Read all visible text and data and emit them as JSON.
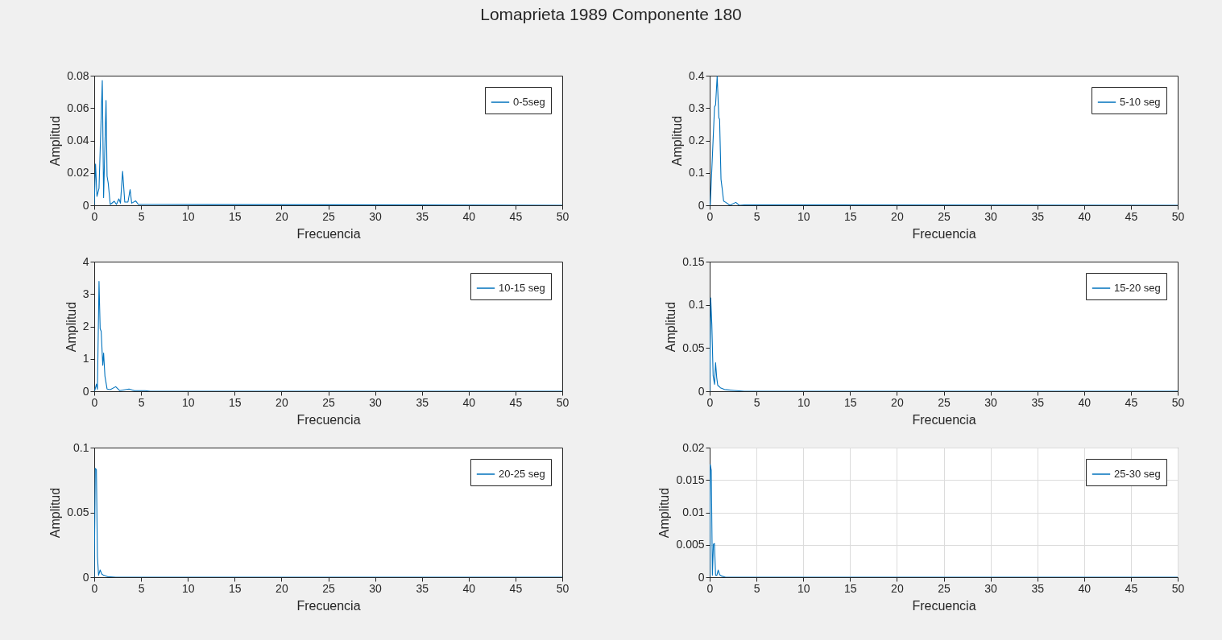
{
  "chart_data": [
    {
      "type": "line",
      "title": "Lomaprieta 1989 Componente 180",
      "xlabel": "Frecuencia",
      "ylabel": "Amplitud",
      "xlim": [
        0,
        50
      ],
      "xticks": [
        0,
        5,
        10,
        15,
        20,
        25,
        30,
        35,
        40,
        45,
        50
      ],
      "ylim": [
        0,
        0.08
      ],
      "yticks": [
        0,
        0.02,
        0.04,
        0.06,
        0.08
      ],
      "legend": "top right",
      "x": [
        0,
        0.14,
        0.29,
        0.51,
        0.86,
        1.0,
        1.26,
        1.37,
        1.49,
        1.71,
        2.14,
        2.37,
        2.63,
        2.8,
        3.03,
        3.26,
        3.6,
        3.83,
        4.0,
        4.43,
        4.71,
        6.14,
        50
      ],
      "series": [
        {
          "name": "0-5seg",
          "color": "#0072bd",
          "values": [
            0.0005,
            0.0255,
            0.0055,
            0.0105,
            0.077,
            0.0047,
            0.0647,
            0.018,
            0.0138,
            0.0005,
            0.0025,
            0.0005,
            0.004,
            0.0013,
            0.021,
            0.002,
            0.002,
            0.0097,
            0.0013,
            0.0027,
            0.0005,
            0.0005,
            0
          ]
        }
      ]
    },
    {
      "type": "line",
      "xlabel": "Frecuencia",
      "ylabel": "Amplitud",
      "xlim": [
        0,
        50
      ],
      "xticks": [
        0,
        5,
        10,
        15,
        20,
        25,
        30,
        35,
        40,
        45,
        50
      ],
      "ylim": [
        0,
        0.4
      ],
      "yticks": [
        0,
        0.1,
        0.2,
        0.3,
        0.4
      ],
      "legend": "top right",
      "x": [
        0.06,
        0.52,
        0.63,
        0.8,
        0.98,
        1.06,
        1.21,
        1.32,
        1.49,
        1.72,
        2.16,
        2.79,
        3.16,
        3.7,
        50
      ],
      "series": [
        {
          "name": "5-10 seg",
          "color": "#0072bd",
          "values": [
            0,
            0.303,
            0.31,
            0.398,
            0.27,
            0.265,
            0.08,
            0.055,
            0.013,
            0.009,
            0,
            0.009,
            0,
            0.001,
            0
          ]
        }
      ]
    },
    {
      "type": "line",
      "xlabel": "Frecuencia",
      "ylabel": "Amplitud",
      "xlim": [
        0,
        50
      ],
      "xticks": [
        0,
        5,
        10,
        15,
        20,
        25,
        30,
        35,
        40,
        45,
        50
      ],
      "ylim": [
        0,
        4
      ],
      "yticks": [
        0,
        1,
        2,
        3,
        4
      ],
      "legend": "top right",
      "x": [
        0.06,
        0.23,
        0.34,
        0.51,
        0.63,
        0.74,
        0.91,
        1.0,
        1.14,
        1.37,
        1.71,
        2.29,
        2.71,
        3.71,
        4.29,
        5.43,
        6.0,
        50
      ],
      "series": [
        {
          "name": "10-15 seg",
          "color": "#0072bd",
          "values": [
            0.02,
            0.22,
            0.06,
            3.39,
            1.93,
            1.85,
            0.8,
            1.18,
            0.47,
            0.07,
            0.05,
            0.14,
            0.02,
            0.07,
            0.02,
            0.02,
            0,
            0
          ]
        }
      ]
    },
    {
      "type": "line",
      "xlabel": "Frecuencia",
      "ylabel": "Amplitud",
      "xlim": [
        0,
        50
      ],
      "xticks": [
        0,
        5,
        10,
        15,
        20,
        25,
        30,
        35,
        40,
        45,
        50
      ],
      "ylim": [
        0,
        0.15
      ],
      "yticks": [
        0,
        0.05,
        0.1,
        0.15
      ],
      "legend": "top right",
      "x": [
        0,
        0.11,
        0.23,
        0.37,
        0.52,
        0.63,
        0.75,
        0.86,
        1.15,
        1.58,
        2.6,
        3.7,
        50
      ],
      "series": [
        {
          "name": "15-20 seg",
          "color": "#0072bd",
          "values": [
            0,
            0.108,
            0.077,
            0.018,
            0.008,
            0.033,
            0.016,
            0.007,
            0.004,
            0.002,
            0.001,
            0,
            0
          ]
        }
      ]
    },
    {
      "type": "line",
      "xlabel": "Frecuencia",
      "ylabel": "Amplitud",
      "xlim": [
        0,
        50
      ],
      "xticks": [
        0,
        5,
        10,
        15,
        20,
        25,
        30,
        35,
        40,
        45,
        50
      ],
      "ylim": [
        0,
        0.1
      ],
      "yticks": [
        0,
        0.05,
        0.1
      ],
      "legend": "top right",
      "x": [
        0,
        0.11,
        0.23,
        0.34,
        0.46,
        0.63,
        0.8,
        1.0,
        1.43,
        2.3,
        50
      ],
      "series": [
        {
          "name": "20-25 seg",
          "color": "#0072bd",
          "values": [
            0,
            0.084,
            0.083,
            0.016,
            0.0015,
            0.0056,
            0.0025,
            0.0015,
            0.0004,
            0,
            0
          ]
        }
      ]
    },
    {
      "type": "line",
      "xlabel": "Frecuencia",
      "ylabel": "Amplitud",
      "xlim": [
        0,
        50
      ],
      "xticks": [
        0,
        5,
        10,
        15,
        20,
        25,
        30,
        35,
        40,
        45,
        50
      ],
      "ylim": [
        0,
        0.02
      ],
      "yticks": [
        0,
        0.005,
        0.01,
        0.015,
        0.02
      ],
      "legend": "top right",
      "grid": true,
      "x": [
        0,
        0.06,
        0.17,
        0.29,
        0.4,
        0.51,
        0.63,
        0.77,
        0.91,
        1.06,
        1.23,
        1.7,
        50
      ],
      "series": [
        {
          "name": "25-30 seg",
          "color": "#0072bd",
          "values": [
            0,
            0.0174,
            0.0165,
            0.0003,
            0.0051,
            0.0052,
            0.0003,
            0.0003,
            0.0011,
            0.0004,
            0.0002,
            0,
            0
          ]
        }
      ]
    }
  ]
}
